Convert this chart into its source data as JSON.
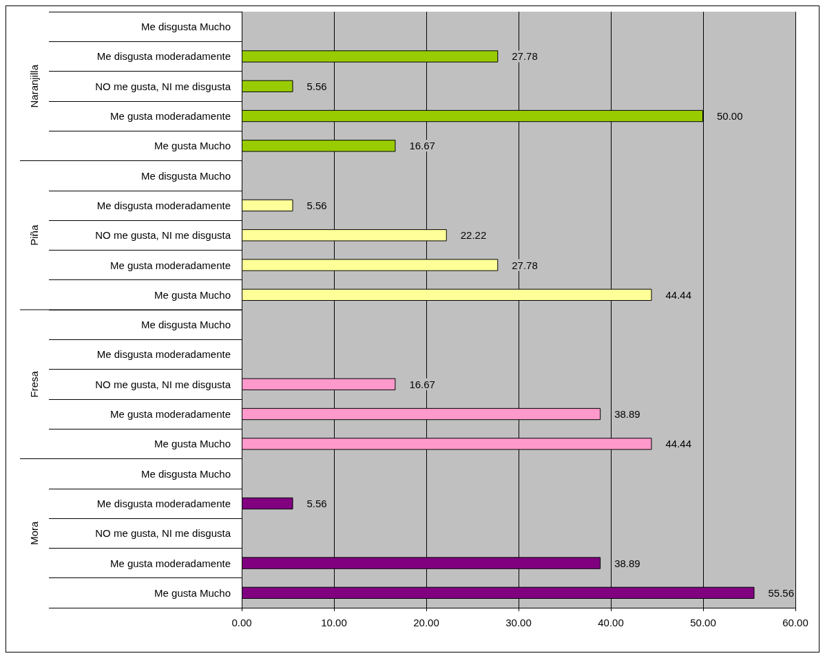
{
  "chart_data": {
    "type": "bar",
    "orientation": "horizontal",
    "categories": [
      "Me disgusta Mucho",
      "Me disgusta moderadamente",
      "NO me gusta, NI me disgusta",
      "Me gusta moderadamente",
      "Me gusta Mucho",
      "Me disgusta Mucho",
      "Me disgusta moderadamente",
      "NO me gusta, NI me disgusta",
      "Me gusta moderadamente",
      "Me gusta Mucho",
      "Me disgusta Mucho",
      "Me disgusta moderadamente",
      "NO me gusta, NI me disgusta",
      "Me gusta moderadamente",
      "Me gusta Mucho",
      "Me disgusta Mucho",
      "Me disgusta moderadamente",
      "NO me gusta, NI me disgusta",
      "Me gusta moderadamente",
      "Me gusta Mucho"
    ],
    "series": [
      {
        "color": "#99cc00",
        "values": [
          null,
          27.78,
          5.56,
          50.0,
          16.67,
          null,
          null,
          null,
          null,
          null,
          null,
          null,
          null,
          null,
          null,
          null,
          null,
          null,
          null,
          null
        ],
        "value_labels": [
          null,
          "27.78",
          "5.56",
          "50.00",
          "16.67",
          null,
          null,
          null,
          null,
          null,
          null,
          null,
          null,
          null,
          null,
          null,
          null,
          null,
          null,
          null
        ]
      },
      {
        "color": "#ffff99",
        "values": [
          null,
          null,
          null,
          null,
          null,
          null,
          5.56,
          22.22,
          27.78,
          44.44,
          null,
          null,
          null,
          null,
          null,
          null,
          null,
          null,
          null,
          null
        ],
        "value_labels": [
          null,
          null,
          null,
          null,
          null,
          null,
          "5.56",
          "22.22",
          "27.78",
          "44.44",
          null,
          null,
          null,
          null,
          null,
          null,
          null,
          null,
          null,
          null
        ]
      },
      {
        "color": "#ff99cc",
        "values": [
          null,
          null,
          null,
          null,
          null,
          null,
          null,
          null,
          null,
          null,
          null,
          null,
          16.67,
          38.89,
          44.44,
          null,
          null,
          null,
          null,
          null
        ],
        "value_labels": [
          null,
          null,
          null,
          null,
          null,
          null,
          null,
          null,
          null,
          null,
          null,
          null,
          "16.67",
          "38.89",
          "44.44",
          null,
          null,
          null,
          null,
          null
        ]
      },
      {
        "color": "#800080",
        "values": [
          null,
          null,
          null,
          null,
          null,
          null,
          null,
          null,
          null,
          null,
          null,
          null,
          null,
          null,
          null,
          null,
          5.56,
          null,
          38.89,
          55.56
        ],
        "value_labels": [
          null,
          null,
          null,
          null,
          null,
          null,
          null,
          null,
          null,
          null,
          null,
          null,
          null,
          null,
          null,
          null,
          "5.56",
          null,
          "38.89",
          "55.56"
        ]
      }
    ],
    "xlim": [
      0,
      60
    ],
    "xticks": [
      {
        "value": 0,
        "label": "0.00"
      },
      {
        "value": 10,
        "label": "10.00"
      },
      {
        "value": 20,
        "label": "20.00"
      },
      {
        "value": 30,
        "label": "30.00"
      },
      {
        "value": 40,
        "label": "40.00"
      },
      {
        "value": 50,
        "label": "50.00"
      },
      {
        "value": 60,
        "label": "60.00"
      }
    ],
    "annotations": [
      "Naranjilla",
      "Piña",
      "Fresa",
      "Mora"
    ],
    "grid": "x"
  }
}
